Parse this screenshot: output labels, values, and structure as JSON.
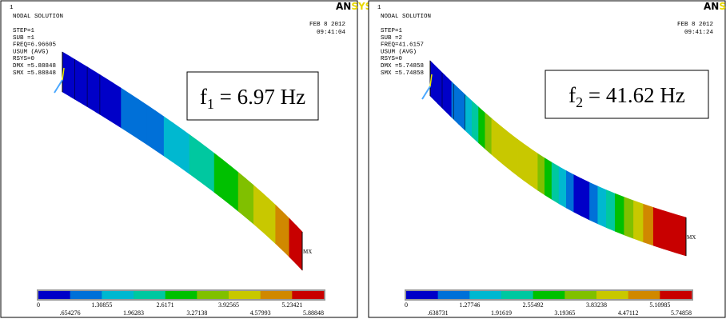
{
  "panels": [
    {
      "window_number": "1",
      "title": "NODAL SOLUTION",
      "info": [
        "STEP=1",
        "SUB =1",
        "FREQ=6.96605",
        "USUM      (AVG)",
        "RSYS=0",
        "DMX =5.88848",
        "SMX =5.88848"
      ],
      "date": "FEB  8 2012",
      "time": "09:41:04",
      "logo": {
        "left": "AN",
        "right": "SYS"
      },
      "max_marker": "MX",
      "frequency_label": {
        "symbol": "f",
        "subscript": "1",
        "text": " = 6.97 Hz"
      },
      "legend": {
        "upper": [
          "0",
          "1.30855",
          "2.6171",
          "3.92565",
          "5.23421"
        ],
        "lower": [
          ".654276",
          "1.96283",
          "3.27138",
          "4.57993",
          "5.88848"
        ]
      }
    },
    {
      "window_number": "1",
      "title": "NODAL SOLUTION",
      "info": [
        "STEP=1",
        "SUB =2",
        "FREQ=41.6157",
        "USUM      (AVG)",
        "RSYS=0",
        "DMX =5.74858",
        "SMX =5.74858"
      ],
      "date": "FEB  8 2012",
      "time": "09:41:24",
      "logo": {
        "left": "AN",
        "right": "SYS"
      },
      "max_marker": "MX",
      "frequency_label": {
        "symbol": "f",
        "subscript": "2",
        "text": " = 41.62 Hz"
      },
      "legend": {
        "upper": [
          "0",
          "1.27746",
          "2.55492",
          "3.83238",
          "5.10985"
        ],
        "lower": [
          ".638731",
          "1.91619",
          "3.19365",
          "4.47112",
          "5.74858"
        ]
      }
    }
  ]
}
